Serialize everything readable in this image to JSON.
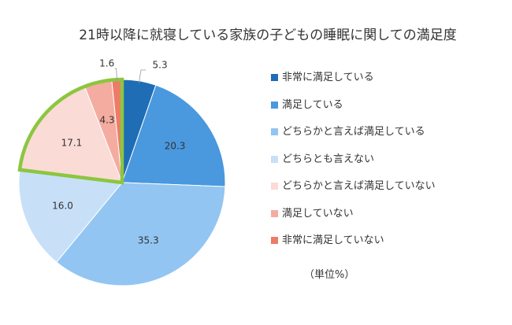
{
  "chart_data": {
    "type": "pie",
    "title": "21時以降に就寝している家族の子どもの睡眠に関しての満足度",
    "unit_note": "（単位%）",
    "legend_position": "right",
    "slices": [
      {
        "label": "非常に満足している",
        "value": 5.3,
        "value_label": "5.3",
        "color": "#1f6db5",
        "label_placement": "outside"
      },
      {
        "label": "満足している",
        "value": 20.3,
        "value_label": "20.3",
        "color": "#4a98de",
        "label_placement": "inside"
      },
      {
        "label": "どちらかと言えば満足している",
        "value": 35.3,
        "value_label": "35.3",
        "color": "#92c5f2",
        "label_placement": "inside"
      },
      {
        "label": "どちらとも言えない",
        "value": 16.0,
        "value_label": "16.0",
        "color": "#c7e0f8",
        "label_placement": "inside"
      },
      {
        "label": "どちらかと言えば満足していない",
        "value": 17.1,
        "value_label": "17.1",
        "color": "#fadbd6",
        "label_placement": "inside"
      },
      {
        "label": "満足していない",
        "value": 4.3,
        "value_label": "4.3",
        "color": "#f5aca0",
        "label_placement": "inside"
      },
      {
        "label": "非常に満足していない",
        "value": 1.6,
        "value_label": "1.6",
        "color": "#ee7b68",
        "label_placement": "outside"
      }
    ],
    "highlight": {
      "slices": [
        "どちらかと言えば満足していない",
        "満足していない",
        "非常に満足していない"
      ],
      "color": "#8cc63f"
    }
  }
}
